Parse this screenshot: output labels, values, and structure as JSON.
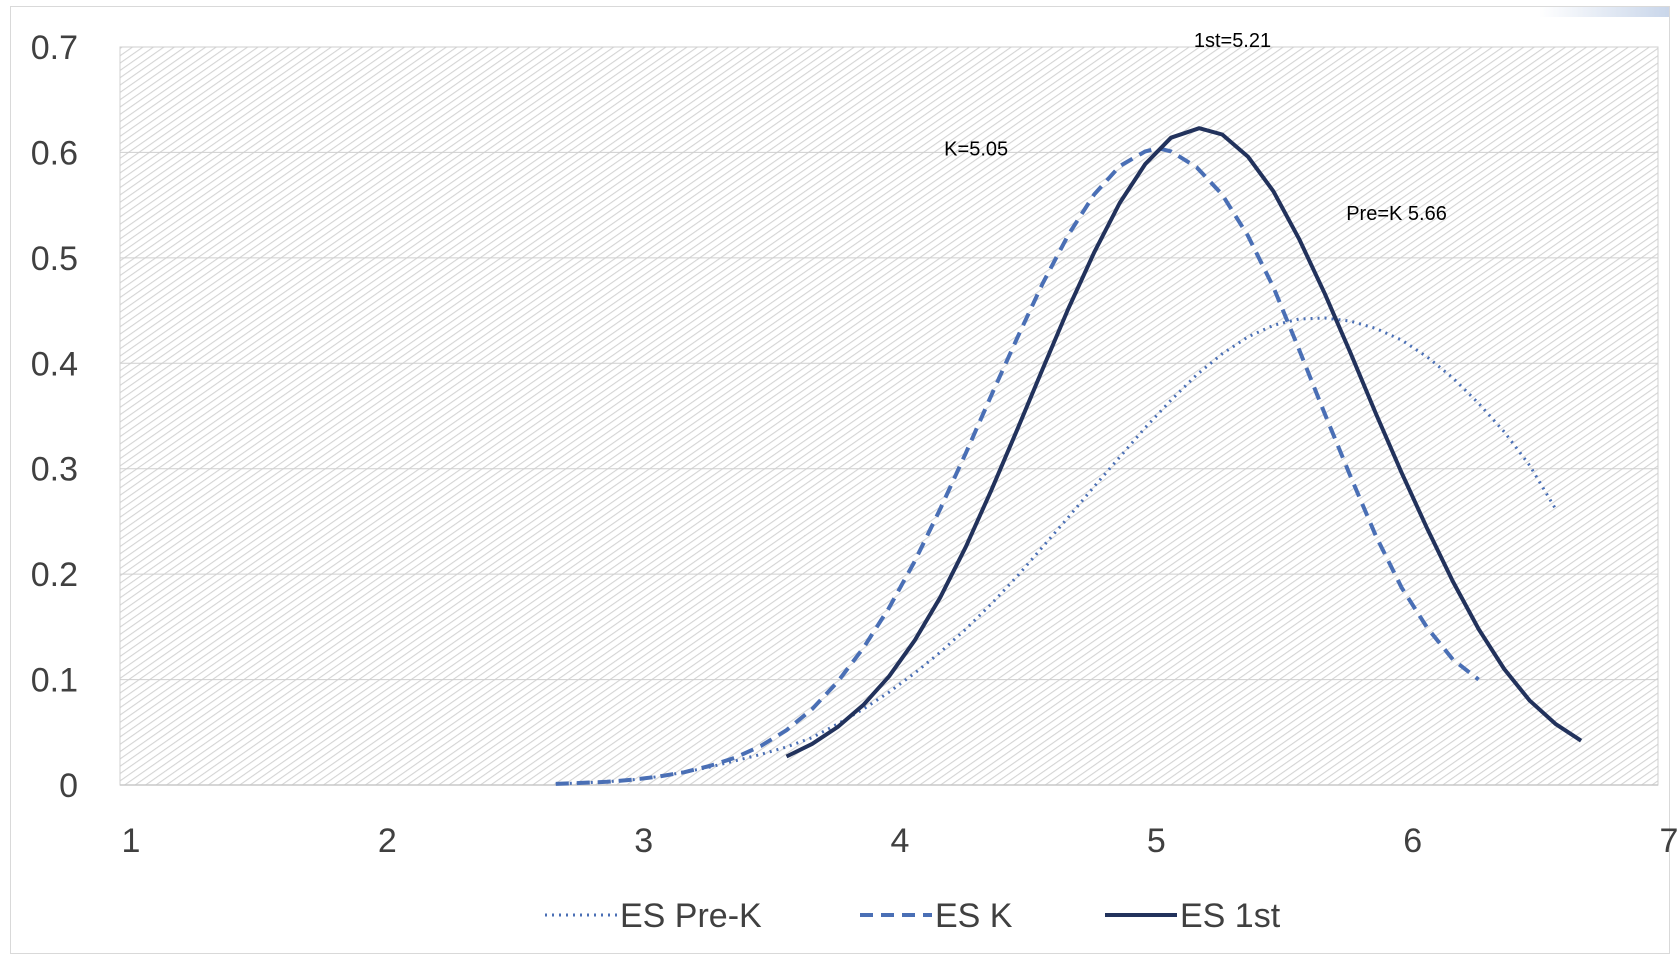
{
  "chart_data": {
    "type": "line",
    "title": "",
    "xlabel": "",
    "ylabel": "",
    "xlim": [
      1,
      7
    ],
    "ylim": [
      0,
      0.7
    ],
    "x_ticks": [
      "1",
      "2",
      "3",
      "4",
      "5",
      "6",
      "7"
    ],
    "y_ticks": [
      "0",
      "0.1",
      "0.2",
      "0.3",
      "0.4",
      "0.5",
      "0.6",
      "0.7"
    ],
    "grid": true,
    "plot_background": "diagonal hatch",
    "legend_position": "bottom",
    "series": [
      {
        "name": "ES Pre-K",
        "style": "dotted",
        "color": "#4a6fb5",
        "x": [
          2.7,
          2.8,
          2.9,
          3.0,
          3.1,
          3.2,
          3.3,
          3.4,
          3.5,
          3.6,
          3.7,
          3.8,
          3.9,
          4.0,
          4.1,
          4.2,
          4.3,
          4.4,
          4.5,
          4.6,
          4.7,
          4.8,
          4.9,
          5.0,
          5.1,
          5.2,
          5.3,
          5.4,
          5.5,
          5.6,
          5.7,
          5.8,
          5.9,
          6.0,
          6.1,
          6.2,
          6.3,
          6.4,
          6.5,
          6.6
        ],
        "y": [
          0.001,
          0.002,
          0.003,
          0.005,
          0.008,
          0.012,
          0.017,
          0.023,
          0.029,
          0.036,
          0.045,
          0.058,
          0.072,
          0.088,
          0.106,
          0.126,
          0.148,
          0.172,
          0.198,
          0.226,
          0.254,
          0.283,
          0.311,
          0.339,
          0.365,
          0.389,
          0.409,
          0.425,
          0.436,
          0.442,
          0.443,
          0.44,
          0.433,
          0.422,
          0.406,
          0.386,
          0.362,
          0.335,
          0.303,
          0.262
        ]
      },
      {
        "name": "ES K",
        "style": "dashed",
        "color": "#4a6fb5",
        "x": [
          2.7,
          2.8,
          2.9,
          3.0,
          3.1,
          3.2,
          3.3,
          3.4,
          3.5,
          3.6,
          3.7,
          3.8,
          3.9,
          4.0,
          4.1,
          4.2,
          4.3,
          4.4,
          4.5,
          4.6,
          4.7,
          4.8,
          4.9,
          5.0,
          5.05,
          5.1,
          5.2,
          5.3,
          5.4,
          5.5,
          5.6,
          5.7,
          5.8,
          5.9,
          6.0,
          6.1,
          6.2,
          6.3
        ],
        "y": [
          0.001,
          0.002,
          0.003,
          0.005,
          0.008,
          0.012,
          0.018,
          0.026,
          0.037,
          0.052,
          0.072,
          0.098,
          0.13,
          0.168,
          0.212,
          0.262,
          0.315,
          0.37,
          0.424,
          0.476,
          0.522,
          0.56,
          0.587,
          0.601,
          0.604,
          0.601,
          0.586,
          0.56,
          0.521,
          0.472,
          0.413,
          0.352,
          0.293,
          0.236,
          0.187,
          0.149,
          0.119,
          0.1
        ]
      },
      {
        "name": "ES 1st",
        "style": "solid",
        "color": "#22325c",
        "x": [
          3.6,
          3.7,
          3.8,
          3.9,
          4.0,
          4.1,
          4.2,
          4.3,
          4.4,
          4.5,
          4.6,
          4.7,
          4.8,
          4.9,
          5.0,
          5.1,
          5.21,
          5.3,
          5.4,
          5.5,
          5.6,
          5.7,
          5.8,
          5.9,
          6.0,
          6.1,
          6.2,
          6.3,
          6.4,
          6.5,
          6.6,
          6.7
        ],
        "y": [
          0.027,
          0.039,
          0.055,
          0.076,
          0.103,
          0.137,
          0.178,
          0.226,
          0.28,
          0.337,
          0.395,
          0.452,
          0.505,
          0.552,
          0.589,
          0.614,
          0.623,
          0.617,
          0.596,
          0.563,
          0.518,
          0.466,
          0.41,
          0.352,
          0.296,
          0.243,
          0.193,
          0.148,
          0.11,
          0.08,
          0.058,
          0.042
        ]
      }
    ],
    "annotations": [
      {
        "text": "1st=5.21",
        "x": 5.34,
        "y": 0.7
      },
      {
        "text": "K=5.05",
        "x": 4.34,
        "y": 0.597
      },
      {
        "text": "Pre=K 5.66",
        "x": 5.98,
        "y": 0.536
      }
    ]
  }
}
